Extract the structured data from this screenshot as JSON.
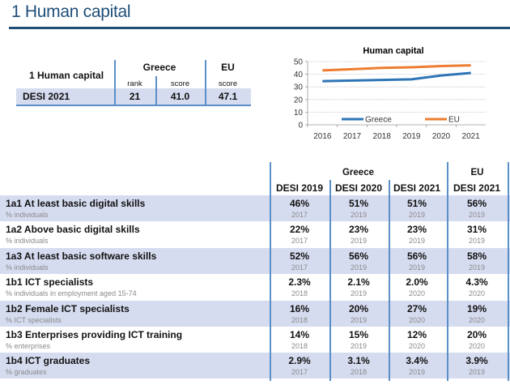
{
  "page": {
    "title": "1 Human capital"
  },
  "summary": {
    "label": "1 Human capital",
    "greece_header": "Greece",
    "eu_header": "EU",
    "sub_rank": "rank",
    "sub_score_greece": "score",
    "sub_score_eu": "score",
    "row_label": "DESI 2021",
    "greece_rank": "21",
    "greece_score": "41.0",
    "eu_score": "47.1"
  },
  "colors": {
    "greece": "#2e75b6",
    "eu": "#ed7d31",
    "accent": "#1f4e79",
    "shade": "#d6dcf0",
    "divider": "#5b8fc7"
  },
  "chart_data": {
    "type": "line",
    "title": "Human capital",
    "x": [
      "2016",
      "2017",
      "2018",
      "2019",
      "2020",
      "2021"
    ],
    "yticks": [
      "0",
      "10",
      "20",
      "30",
      "40",
      "50"
    ],
    "ylim": [
      0,
      50
    ],
    "grid": true,
    "legend": "bottom-inside",
    "series": [
      {
        "name": "Greece",
        "values": [
          34.5,
          35,
          35.5,
          36,
          39,
          41
        ]
      },
      {
        "name": "EU",
        "values": [
          43,
          44,
          45,
          45.5,
          46.5,
          47
        ]
      }
    ]
  },
  "main": {
    "group_greece": "Greece",
    "group_eu": "EU",
    "columns": [
      "DESI 2019",
      "DESI 2020",
      "DESI 2021",
      "DESI 2021"
    ],
    "rows": [
      {
        "name": "1a1 At least basic digital skills",
        "unit": "% individuals",
        "values": [
          "46%",
          "51%",
          "51%",
          "56%"
        ],
        "years": [
          "2017",
          "2019",
          "2019",
          "2019"
        ]
      },
      {
        "name": "1a2 Above basic digital skills",
        "unit": "% individuals",
        "values": [
          "22%",
          "23%",
          "23%",
          "31%"
        ],
        "years": [
          "2017",
          "2019",
          "2019",
          "2019"
        ]
      },
      {
        "name": "1a3 At least basic software skills",
        "unit": "% individuals",
        "values": [
          "52%",
          "56%",
          "56%",
          "58%"
        ],
        "years": [
          "2017",
          "2019",
          "2019",
          "2019"
        ]
      },
      {
        "name": "1b1 ICT specialists",
        "unit": "% individuals in employment aged 15-74",
        "values": [
          "2.3%",
          "2.1%",
          "2.0%",
          "4.3%"
        ],
        "years": [
          "2018",
          "2019",
          "2020",
          "2020"
        ]
      },
      {
        "name": "1b2 Female ICT specialists",
        "unit": "% ICT specialists",
        "values": [
          "16%",
          "20%",
          "27%",
          "19%"
        ],
        "years": [
          "2018",
          "2019",
          "2020",
          "2020"
        ]
      },
      {
        "name": "1b3 Enterprises providing ICT training",
        "unit": "% enterprises",
        "values": [
          "14%",
          "15%",
          "12%",
          "20%"
        ],
        "years": [
          "2018",
          "2019",
          "2020",
          "2020"
        ]
      },
      {
        "name": "1b4 ICT graduates",
        "unit": "% graduates",
        "values": [
          "2.9%",
          "3.1%",
          "3.4%",
          "3.9%"
        ],
        "years": [
          "2017",
          "2018",
          "2019",
          "2019"
        ]
      }
    ]
  }
}
